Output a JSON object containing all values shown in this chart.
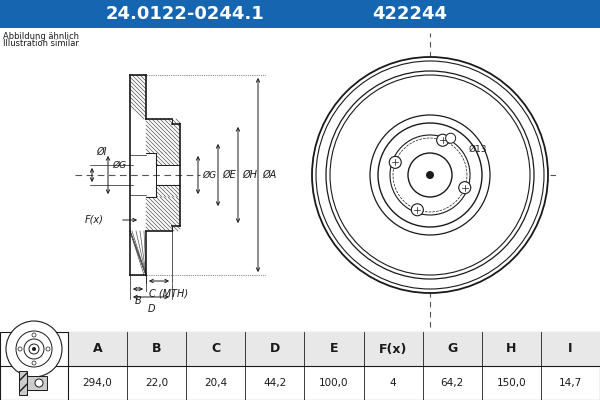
{
  "title_part": "24.0122-0244.1",
  "title_code": "422244",
  "title_bg": "#1565b0",
  "title_fg": "#ffffff",
  "subtitle1": "Abbildung ähnlich",
  "subtitle2": "Illustration similar",
  "table_headers": [
    "A",
    "B",
    "C",
    "D",
    "E",
    "F(x)",
    "G",
    "H",
    "I"
  ],
  "table_values": [
    "294,0",
    "22,0",
    "20,4",
    "44,2",
    "100,0",
    "4",
    "64,2",
    "150,0",
    "14,7"
  ],
  "dim_label_c": "C (MTH)",
  "dim_phi13": "Ø13",
  "bg_color": "#ffffff",
  "line_color": "#1a1a1a",
  "hatch_color": "#555555",
  "table_header_bg": "#e8e8e8",
  "crosshair_color": "#555555"
}
